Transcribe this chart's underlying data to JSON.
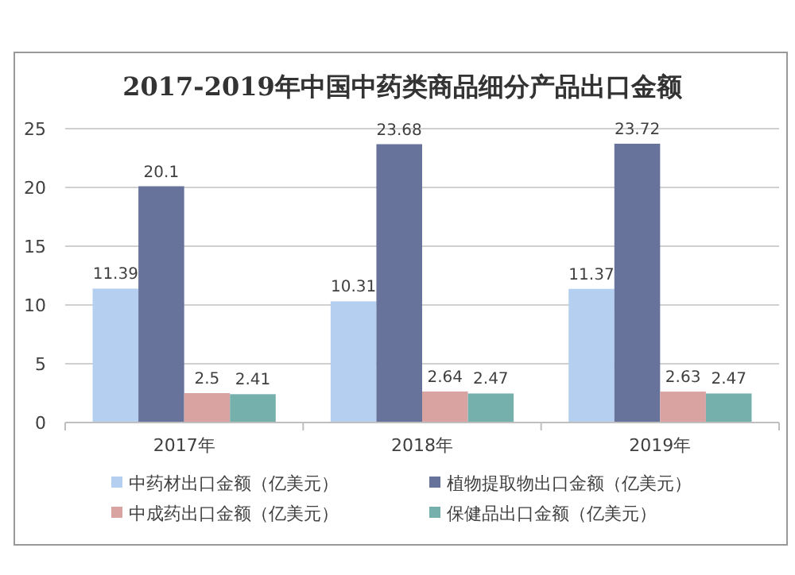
{
  "chart_data": {
    "type": "bar",
    "title": "2017-2019年中国中药类商品细分产品出口金额",
    "categories": [
      "2017年",
      "2018年",
      "2019年"
    ],
    "series": [
      {
        "name": "中药材出口金额（亿美元）",
        "color": "#b4cff0",
        "values": [
          11.39,
          10.31,
          11.37
        ]
      },
      {
        "name": "植物提取物出口金额（亿美元）",
        "color": "#67739b",
        "values": [
          20.1,
          23.68,
          23.72
        ]
      },
      {
        "name": "中成药出口金额（亿美元）",
        "color": "#d9a3a2",
        "values": [
          2.5,
          2.64,
          2.63
        ]
      },
      {
        "name": "保健品出口金额（亿美元）",
        "color": "#76b0ad",
        "values": [
          2.41,
          2.47,
          2.47
        ]
      }
    ],
    "ylim": [
      0,
      25
    ],
    "yticks": [
      0,
      5,
      10,
      15,
      20,
      25
    ],
    "grid": "y",
    "legend": "bottom",
    "data_labels": true
  }
}
